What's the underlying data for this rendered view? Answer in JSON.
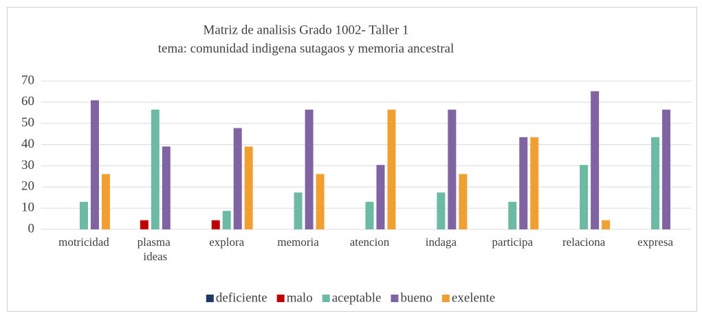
{
  "chart_data": {
    "type": "bar",
    "title": "Matriz de analisis Grado 1002- Taller 1",
    "subtitle": "tema: comunidad indigena sutagaos y memoria ancestral",
    "categories": [
      "motricidad",
      "plasma ideas",
      "explora",
      "memoria",
      "atencion",
      "indaga",
      "participa",
      "relaciona",
      "expresa"
    ],
    "series": [
      {
        "name": "deficiente",
        "color": "#1f3864",
        "values": [
          0,
          0,
          0,
          0,
          0,
          0,
          0,
          0,
          0
        ]
      },
      {
        "name": "malo",
        "color": "#c00000",
        "values": [
          0,
          4.3,
          4.3,
          0,
          0,
          0,
          0,
          0,
          0
        ]
      },
      {
        "name": "aceptable",
        "color": "#6cb9a4",
        "values": [
          13,
          56.5,
          8.7,
          17.4,
          13,
          17.4,
          13,
          30.4,
          43.5
        ]
      },
      {
        "name": "bueno",
        "color": "#8064a2",
        "values": [
          60.9,
          39.1,
          47.8,
          56.5,
          30.4,
          56.5,
          43.5,
          65.2,
          56.5
        ]
      },
      {
        "name": "exelente",
        "color": "#f0a030",
        "values": [
          26.1,
          0,
          39.1,
          26.1,
          56.5,
          26.1,
          43.5,
          4.3,
          0
        ]
      }
    ],
    "ylim": [
      0,
      70
    ],
    "yticks": [
      0,
      10,
      20,
      30,
      40,
      50,
      60,
      70
    ],
    "grid": true,
    "legend": "bottom"
  }
}
